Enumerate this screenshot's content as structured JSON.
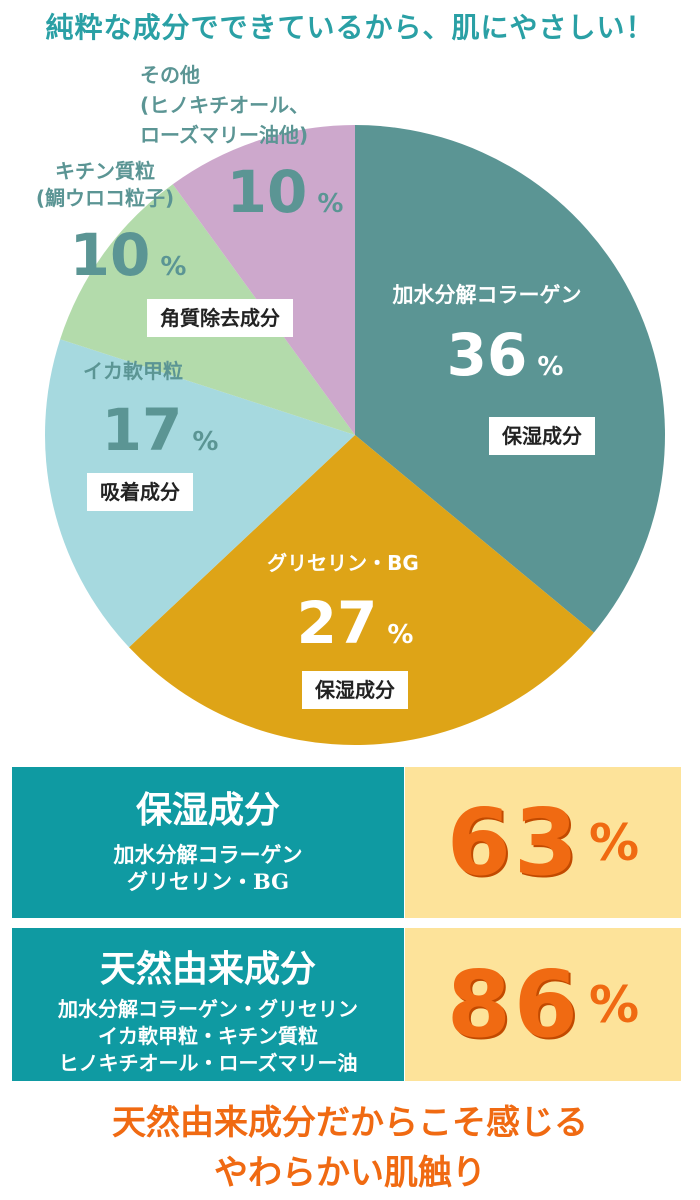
{
  "headline": "純粋な成分でできているから、肌にやさしい！",
  "chart_data": {
    "type": "pie",
    "unit": "%",
    "slices": [
      {
        "name": "加水分解コラーゲン",
        "value": 36,
        "tag": "保湿成分",
        "color": "#5b9594"
      },
      {
        "name": "グリセリン・BG",
        "value": 27,
        "tag": "保湿成分",
        "color": "#dea417"
      },
      {
        "name": "イカ軟甲粒",
        "value": 17,
        "tag": "吸着成分",
        "color": "#a6d9df"
      },
      {
        "name_lines": [
          "キチン質粒",
          "(鯛ウロコ粒子)"
        ],
        "value": 10,
        "tag": "角質除去成分",
        "color": "#b3dbab"
      },
      {
        "name_lines": [
          "その他",
          "(ヒノキチオール、",
          "ローズマリー油他)"
        ],
        "value": 10,
        "color": "#cda8cc"
      }
    ]
  },
  "summary": [
    {
      "title": "保湿成分",
      "lines": [
        "加水分解コラーゲン",
        "グリセリン・BG"
      ],
      "value": "63",
      "unit": "%"
    },
    {
      "title": "天然由来成分",
      "lines": [
        "加水分解コラーゲン・グリセリン",
        "イカ軟甲粒・キチン質粒",
        "ヒノキチオール・ローズマリー油"
      ],
      "value": "86",
      "unit": "%"
    }
  ],
  "footer": [
    "天然由来成分だからこそ感じる",
    "やわらかい肌触り"
  ]
}
